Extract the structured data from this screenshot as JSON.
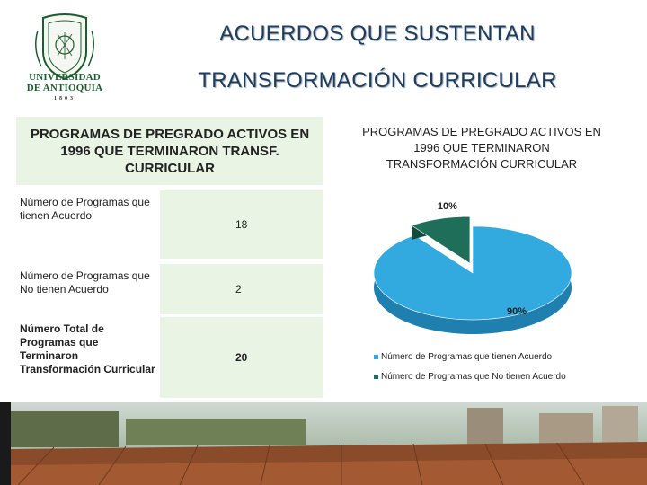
{
  "header": {
    "logo_text_line1": "UNIVERSIDAD",
    "logo_text_line2": "DE ANTIOQUIA",
    "logo_year": "1803",
    "title_line1": "ACUERDOS QUE SUSTENTAN",
    "title_line2": "TRANSFORMACIÓN CURRICULAR"
  },
  "table": {
    "header": "PROGRAMAS DE PREGRADO ACTIVOS EN 1996 QUE TERMINARON TRANSF. CURRICULAR",
    "rows": [
      {
        "label": "Número de Programas que tienen Acuerdo",
        "value": "18"
      },
      {
        "label": "Número de Programas que No tienen Acuerdo",
        "value": "2"
      },
      {
        "label": "Número Total de Programas que Terminaron Transformación Curricular",
        "value": "20"
      }
    ]
  },
  "chart_data": {
    "type": "pie",
    "title": "PROGRAMAS DE PREGRADO ACTIVOS EN 1996 QUE TERMINARON TRANSFORMACIÓN CURRICULAR",
    "categories": [
      "Número de Programas que tienen Acuerdo",
      "Número de Programas que No tienen Acuerdo"
    ],
    "values": [
      18,
      2
    ],
    "data_labels": [
      "90%",
      "10%"
    ],
    "colors": [
      "#33aadf",
      "#1e6e5a"
    ],
    "legend_position": "bottom"
  },
  "colors": {
    "table_fill": "#e9f4e4",
    "title_color": "#1f3d5a",
    "logo_green": "#1d5c2e"
  }
}
